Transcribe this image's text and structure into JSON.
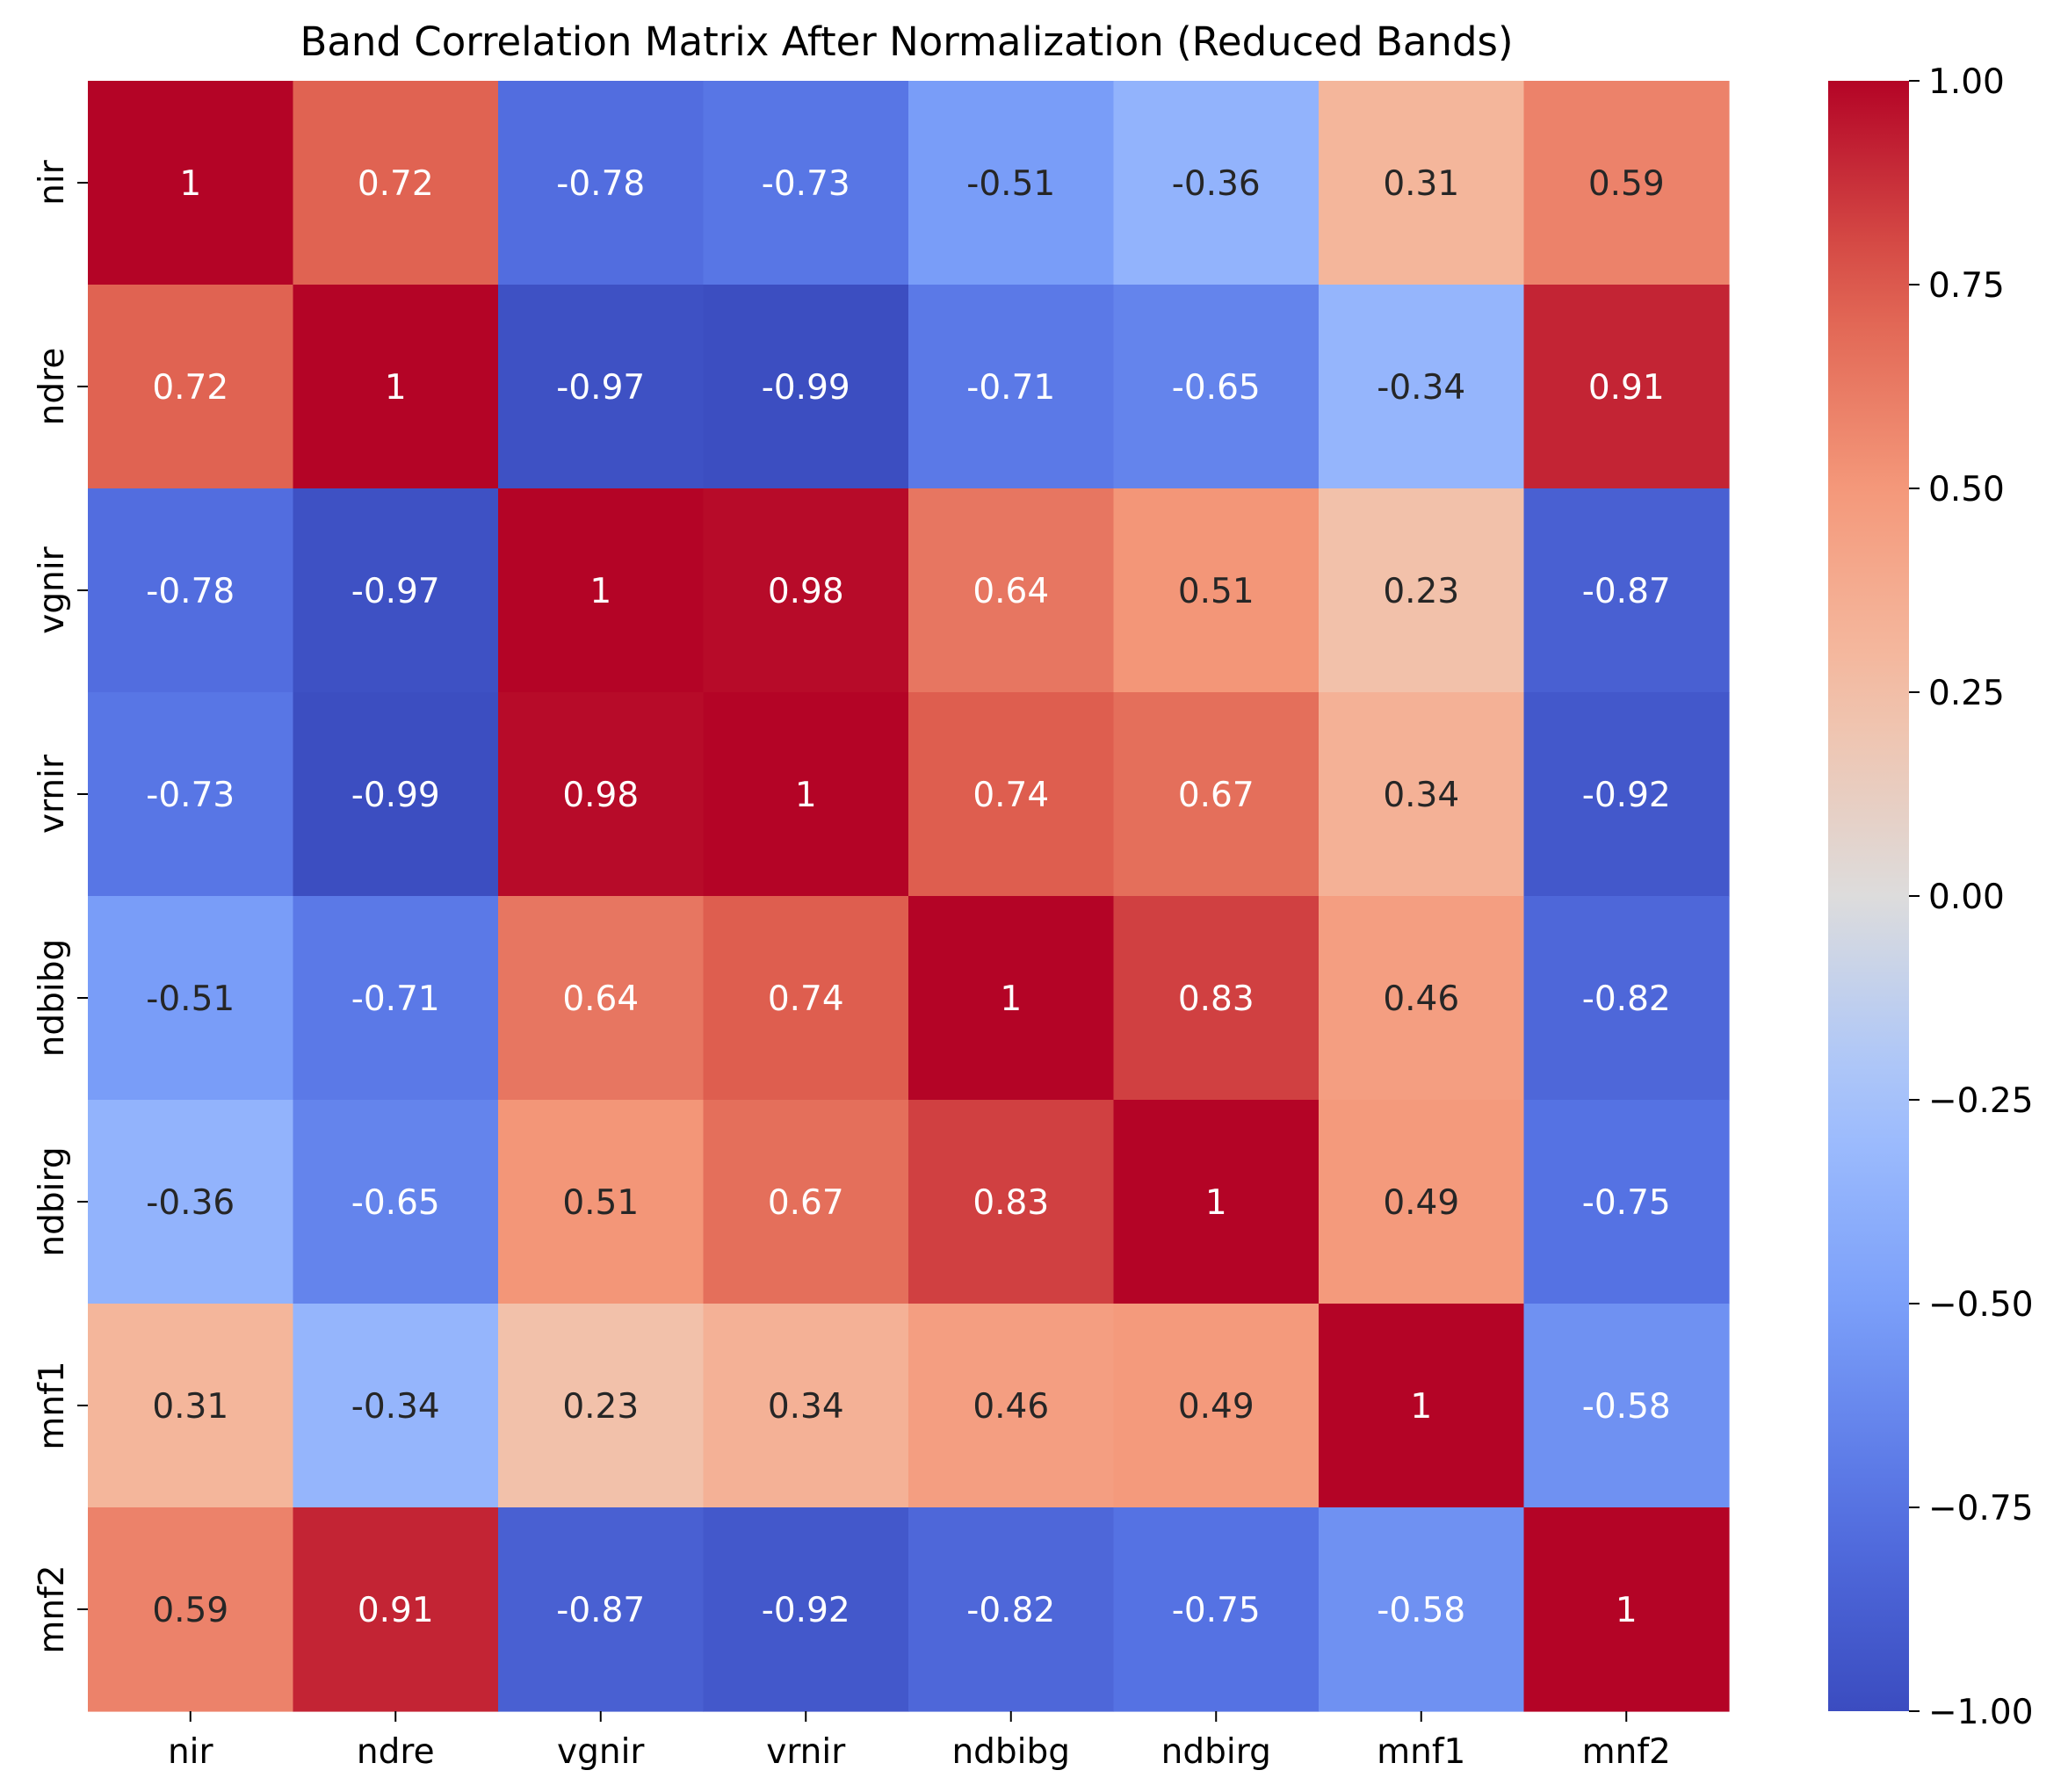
{
  "chart_data": {
    "type": "heatmap",
    "title": "Band Correlation Matrix After Normalization (Reduced Bands)",
    "xlabel": "",
    "ylabel": "",
    "x_labels": [
      "nir",
      "ndre",
      "vgnir",
      "vrnir",
      "ndbibg",
      "ndbirg",
      "mnf1",
      "mnf2"
    ],
    "y_labels": [
      "nir",
      "ndre",
      "vgnir",
      "vrnir",
      "ndbibg",
      "ndbirg",
      "mnf1",
      "mnf2"
    ],
    "matrix": [
      [
        1,
        0.72,
        -0.78,
        -0.73,
        -0.51,
        -0.36,
        0.31,
        0.59
      ],
      [
        0.72,
        1,
        -0.97,
        -0.99,
        -0.71,
        -0.65,
        -0.34,
        0.91
      ],
      [
        -0.78,
        -0.97,
        1,
        0.98,
        0.64,
        0.51,
        0.23,
        -0.87
      ],
      [
        -0.73,
        -0.99,
        0.98,
        1,
        0.74,
        0.67,
        0.34,
        -0.92
      ],
      [
        -0.51,
        -0.71,
        0.64,
        0.74,
        1,
        0.83,
        0.46,
        -0.82
      ],
      [
        -0.36,
        -0.65,
        0.51,
        0.67,
        0.83,
        1,
        0.49,
        -0.75
      ],
      [
        0.31,
        -0.34,
        0.23,
        0.34,
        0.46,
        0.49,
        1,
        -0.58
      ],
      [
        0.59,
        0.91,
        -0.87,
        -0.92,
        -0.82,
        -0.75,
        -0.58,
        1
      ]
    ],
    "annotation_labels": [
      [
        "1",
        "0.72",
        "-0.78",
        "-0.73",
        "-0.51",
        "-0.36",
        "0.31",
        "0.59"
      ],
      [
        "0.72",
        "1",
        "-0.97",
        "-0.99",
        "-0.71",
        "-0.65",
        "-0.34",
        "0.91"
      ],
      [
        "-0.78",
        "-0.97",
        "1",
        "0.98",
        "0.64",
        "0.51",
        "0.23",
        "-0.87"
      ],
      [
        "-0.73",
        "-0.99",
        "0.98",
        "1",
        "0.74",
        "0.67",
        "0.34",
        "-0.92"
      ],
      [
        "-0.51",
        "-0.71",
        "0.64",
        "0.74",
        "1",
        "0.83",
        "0.46",
        "-0.82"
      ],
      [
        "-0.36",
        "-0.65",
        "0.51",
        "0.67",
        "0.83",
        "1",
        "0.49",
        "-0.75"
      ],
      [
        "0.31",
        "-0.34",
        "0.23",
        "0.34",
        "0.46",
        "0.49",
        "1",
        "-0.58"
      ],
      [
        "0.59",
        "0.91",
        "-0.87",
        "-0.92",
        "-0.82",
        "-0.75",
        "-0.58",
        "1"
      ]
    ],
    "colormap": "coolwarm",
    "vmin": -1,
    "vmax": 1,
    "colorbar": {
      "ticks": [
        1.0,
        0.75,
        0.5,
        0.25,
        0.0,
        -0.25,
        -0.5,
        -0.75,
        -1.0
      ],
      "tick_labels": [
        "1.00",
        "0.75",
        "0.50",
        "0.25",
        "0.00",
        "−0.25",
        "−0.50",
        "−0.75",
        "−1.00"
      ],
      "placement": "right"
    },
    "grid": false
  }
}
